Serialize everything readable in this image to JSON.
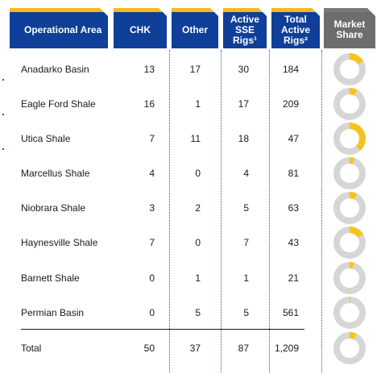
{
  "headers": {
    "area": "Operational Area",
    "chk": "CHK",
    "other": "Other",
    "sse": [
      "Active",
      "SSE",
      "Rigs¹"
    ],
    "total": [
      "Total",
      "Active",
      "Rigs²"
    ],
    "share": [
      "Market",
      "Share"
    ]
  },
  "colors": {
    "header_blue": "#0f3f98",
    "header_grey": "#6d6d6d",
    "accent": "#f7b81f",
    "donut_track": "#d6d6d6",
    "donut_share": "#f7c220"
  },
  "chart_data": {
    "type": "table",
    "columns": [
      "Operational Area",
      "CHK",
      "Other",
      "Active SSE Rigs¹",
      "Total Active Rigs²",
      "Market Share"
    ],
    "rows": [
      {
        "area": "Anadarko Basin",
        "chk": "13",
        "other": "17",
        "sse": "30",
        "total": "184",
        "share": 0.163
      },
      {
        "area": "Eagle Ford Shale",
        "chk": "16",
        "other": "1",
        "sse": "17",
        "total": "209",
        "share": 0.081
      },
      {
        "area": "Utica Shale",
        "chk": "7",
        "other": "11",
        "sse": "18",
        "total": "47",
        "share": 0.383
      },
      {
        "area": "Marcellus Shale",
        "chk": "4",
        "other": "0",
        "sse": "4",
        "total": "81",
        "share": 0.049
      },
      {
        "area": "Niobrara Shale",
        "chk": "3",
        "other": "2",
        "sse": "5",
        "total": "63",
        "share": 0.079
      },
      {
        "area": "Haynesville Shale",
        "chk": "7",
        "other": "0",
        "sse": "7",
        "total": "43",
        "share": 0.163
      },
      {
        "area": "Barnett Shale",
        "chk": "0",
        "other": "1",
        "sse": "1",
        "total": "21",
        "share": 0.048
      },
      {
        "area": "Permian Basin",
        "chk": "0",
        "other": "5",
        "sse": "5",
        "total": "561",
        "share": 0.009
      },
      {
        "area": "Total",
        "chk": "50",
        "other": "37",
        "sse": "87",
        "total": "1,209",
        "share": 0.072
      }
    ]
  }
}
